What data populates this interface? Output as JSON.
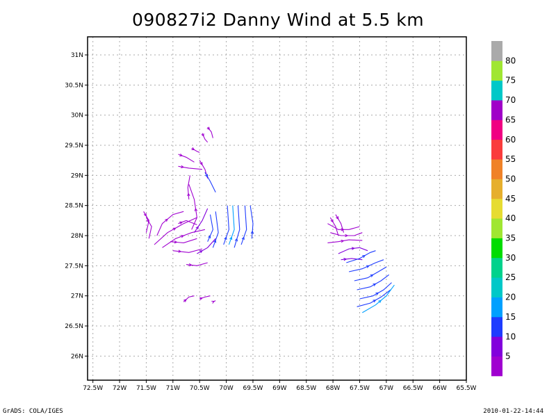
{
  "title": "090827i2 Danny Wind at 5.5 km",
  "footer": {
    "left": "GrADS: COLA/IGES",
    "right": "2010-01-22-14:44"
  },
  "chart_data": {
    "type": "streamline",
    "title": "090827i2 Danny Wind at 5.5 km",
    "xlim": [
      -72.6,
      -65.5
    ],
    "ylim": [
      25.6,
      31.3
    ],
    "grid": true,
    "x_ticks": [
      {
        "value": -72.5,
        "label": "72.5W"
      },
      {
        "value": -72,
        "label": "72W"
      },
      {
        "value": -71.5,
        "label": "71.5W"
      },
      {
        "value": -71,
        "label": "71W"
      },
      {
        "value": -70.5,
        "label": "70.5W"
      },
      {
        "value": -70,
        "label": "70W"
      },
      {
        "value": -69.5,
        "label": "69.5W"
      },
      {
        "value": -69,
        "label": "69W"
      },
      {
        "value": -68.5,
        "label": "68.5W"
      },
      {
        "value": -68,
        "label": "68W"
      },
      {
        "value": -67.5,
        "label": "67.5W"
      },
      {
        "value": -67,
        "label": "67W"
      },
      {
        "value": -66.5,
        "label": "66.5W"
      },
      {
        "value": -66,
        "label": "66W"
      },
      {
        "value": -65.5,
        "label": "65.5W"
      }
    ],
    "y_ticks": [
      {
        "value": 26,
        "label": "26N"
      },
      {
        "value": 26.5,
        "label": "26.5N"
      },
      {
        "value": 27,
        "label": "27N"
      },
      {
        "value": 27.5,
        "label": "27.5N"
      },
      {
        "value": 28,
        "label": "28N"
      },
      {
        "value": 28.5,
        "label": "28.5N"
      },
      {
        "value": 29,
        "label": "29N"
      },
      {
        "value": 29.5,
        "label": "29.5N"
      },
      {
        "value": 30,
        "label": "30N"
      },
      {
        "value": 30.5,
        "label": "30.5N"
      },
      {
        "value": 31,
        "label": "31N"
      }
    ],
    "colorbar": {
      "segments": [
        {
          "color": "#a000d0",
          "label": "5"
        },
        {
          "color": "#8200dc",
          "label": "10"
        },
        {
          "color": "#1e3cff",
          "label": "15"
        },
        {
          "color": "#00a0ff",
          "label": "20"
        },
        {
          "color": "#00c8c8",
          "label": "25"
        },
        {
          "color": "#00d28c",
          "label": "30"
        },
        {
          "color": "#00dc00",
          "label": "35"
        },
        {
          "color": "#a0e632",
          "label": "40"
        },
        {
          "color": "#e6dc32",
          "label": "45"
        },
        {
          "color": "#e6af2d",
          "label": "50"
        },
        {
          "color": "#f08228",
          "label": "55"
        },
        {
          "color": "#fa3c3c",
          "label": "60"
        },
        {
          "color": "#f00082",
          "label": "65"
        },
        {
          "color": "#a000c8",
          "label": "70"
        },
        {
          "color": "#00c8c8",
          "label": "75"
        },
        {
          "color": "#a0e632",
          "label": "80"
        },
        {
          "color": "#aaaaaa",
          "label": ""
        }
      ]
    },
    "streamlines": [
      {
        "color": "#a000d0",
        "points": [
          [
            -70.35,
            29.8
          ],
          [
            -70.28,
            29.72
          ],
          [
            -70.25,
            29.62
          ]
        ]
      },
      {
        "color": "#a000d0",
        "points": [
          [
            -70.45,
            29.7
          ],
          [
            -70.4,
            29.6
          ],
          [
            -70.35,
            29.55
          ]
        ]
      },
      {
        "color": "#a000d0",
        "points": [
          [
            -70.65,
            29.45
          ],
          [
            -70.55,
            29.4
          ],
          [
            -70.5,
            29.38
          ]
        ]
      },
      {
        "color": "#a000d0",
        "points": [
          [
            -70.9,
            29.35
          ],
          [
            -70.75,
            29.3
          ],
          [
            -70.6,
            29.22
          ]
        ]
      },
      {
        "color": "#a000d0",
        "points": [
          [
            -70.9,
            29.15
          ],
          [
            -70.7,
            29.12
          ],
          [
            -70.45,
            29.1
          ]
        ]
      },
      {
        "color": "#a000d0",
        "points": [
          [
            -70.5,
            29.25
          ],
          [
            -70.4,
            29.1
          ],
          [
            -70.35,
            28.95
          ]
        ]
      },
      {
        "color": "#1e3cff",
        "points": [
          [
            -70.4,
            29.05
          ],
          [
            -70.3,
            28.9
          ],
          [
            -70.2,
            28.72
          ]
        ]
      },
      {
        "color": "#a000d0",
        "points": [
          [
            -70.7,
            28.6
          ],
          [
            -70.72,
            28.8
          ],
          [
            -70.68,
            29.0
          ]
        ]
      },
      {
        "color": "#a000d0",
        "points": [
          [
            -70.65,
            28.1
          ],
          [
            -70.55,
            28.3
          ],
          [
            -70.6,
            28.6
          ],
          [
            -70.7,
            28.85
          ]
        ]
      },
      {
        "color": "#a000d0",
        "points": [
          [
            -71.55,
            28.4
          ],
          [
            -71.45,
            28.25
          ],
          [
            -71.5,
            28.05
          ]
        ]
      },
      {
        "color": "#a000d0",
        "points": [
          [
            -71.5,
            28.3
          ],
          [
            -71.4,
            28.15
          ],
          [
            -71.45,
            27.95
          ]
        ]
      },
      {
        "color": "#a000d0",
        "points": [
          [
            -71.3,
            28.0
          ],
          [
            -71.2,
            28.2
          ],
          [
            -71.0,
            28.35
          ],
          [
            -70.8,
            28.4
          ]
        ]
      },
      {
        "color": "#a000d0",
        "points": [
          [
            -71.35,
            27.85
          ],
          [
            -71.1,
            28.05
          ],
          [
            -70.8,
            28.2
          ],
          [
            -70.55,
            28.3
          ]
        ]
      },
      {
        "color": "#a000d0",
        "points": [
          [
            -71.2,
            27.8
          ],
          [
            -70.95,
            27.95
          ],
          [
            -70.65,
            28.05
          ],
          [
            -70.4,
            28.1
          ]
        ]
      },
      {
        "color": "#a000d0",
        "points": [
          [
            -71.05,
            27.9
          ],
          [
            -70.8,
            27.88
          ],
          [
            -70.55,
            27.95
          ]
        ]
      },
      {
        "color": "#a000d0",
        "points": [
          [
            -70.9,
            28.2
          ],
          [
            -70.75,
            28.25
          ],
          [
            -70.55,
            28.18
          ]
        ]
      },
      {
        "color": "#a000d0",
        "points": [
          [
            -71.0,
            27.75
          ],
          [
            -70.7,
            27.72
          ],
          [
            -70.45,
            27.78
          ]
        ]
      },
      {
        "color": "#8200dc",
        "points": [
          [
            -70.55,
            27.7
          ],
          [
            -70.35,
            27.8
          ],
          [
            -70.2,
            27.95
          ]
        ]
      },
      {
        "color": "#8200dc",
        "points": [
          [
            -70.6,
            28.05
          ],
          [
            -70.45,
            28.25
          ],
          [
            -70.35,
            28.45
          ]
        ]
      },
      {
        "color": "#1e3cff",
        "points": [
          [
            -70.35,
            27.9
          ],
          [
            -70.25,
            28.1
          ],
          [
            -70.3,
            28.35
          ]
        ]
      },
      {
        "color": "#1e3cff",
        "points": [
          [
            -70.25,
            27.8
          ],
          [
            -70.15,
            28.05
          ],
          [
            -70.2,
            28.4
          ]
        ]
      },
      {
        "color": "#1e3cff",
        "points": [
          [
            -70.05,
            27.85
          ],
          [
            -69.95,
            28.1
          ],
          [
            -69.98,
            28.5
          ]
        ]
      },
      {
        "color": "#00a0ff",
        "points": [
          [
            -69.95,
            27.85
          ],
          [
            -69.85,
            28.1
          ],
          [
            -69.88,
            28.5
          ]
        ]
      },
      {
        "color": "#1e3cff",
        "points": [
          [
            -69.85,
            27.8
          ],
          [
            -69.75,
            28.1
          ],
          [
            -69.78,
            28.5
          ]
        ]
      },
      {
        "color": "#1e3cff",
        "points": [
          [
            -69.72,
            27.85
          ],
          [
            -69.62,
            28.1
          ],
          [
            -69.65,
            28.5
          ]
        ]
      },
      {
        "color": "#1e3cff",
        "points": [
          [
            -69.52,
            27.95
          ],
          [
            -69.5,
            28.2
          ],
          [
            -69.55,
            28.5
          ]
        ]
      },
      {
        "color": "#a000d0",
        "points": [
          [
            -70.75,
            27.52
          ],
          [
            -70.55,
            27.5
          ],
          [
            -70.35,
            27.55
          ]
        ]
      },
      {
        "color": "#a000d0",
        "points": [
          [
            -70.8,
            26.9
          ],
          [
            -70.7,
            26.98
          ],
          [
            -70.6,
            27.0
          ]
        ]
      },
      {
        "color": "#a000d0",
        "points": [
          [
            -70.5,
            26.95
          ],
          [
            -70.4,
            26.98
          ],
          [
            -70.3,
            27.0
          ]
        ]
      },
      {
        "color": "#a000d0",
        "points": [
          [
            -70.25,
            26.9
          ],
          [
            -70.2,
            26.92
          ]
        ]
      },
      {
        "color": "#a000d0",
        "points": [
          [
            -68.05,
            28.3
          ],
          [
            -67.95,
            28.15
          ],
          [
            -67.9,
            28.0
          ]
        ]
      },
      {
        "color": "#a000d0",
        "points": [
          [
            -67.95,
            28.35
          ],
          [
            -67.85,
            28.2
          ],
          [
            -67.8,
            28.05
          ]
        ]
      },
      {
        "color": "#a000d0",
        "points": [
          [
            -68.1,
            28.2
          ],
          [
            -67.9,
            28.1
          ],
          [
            -67.7,
            28.1
          ],
          [
            -67.5,
            28.15
          ]
        ]
      },
      {
        "color": "#a000d0",
        "points": [
          [
            -68.05,
            28.05
          ],
          [
            -67.85,
            28.0
          ],
          [
            -67.6,
            28.0
          ],
          [
            -67.45,
            28.05
          ]
        ]
      },
      {
        "color": "#a000d0",
        "points": [
          [
            -68.1,
            27.88
          ],
          [
            -67.9,
            27.9
          ],
          [
            -67.7,
            27.93
          ],
          [
            -67.45,
            27.92
          ]
        ]
      },
      {
        "color": "#8200dc",
        "points": [
          [
            -67.9,
            27.7
          ],
          [
            -67.7,
            27.78
          ],
          [
            -67.5,
            27.8
          ],
          [
            -67.35,
            27.75
          ]
        ]
      },
      {
        "color": "#8200dc",
        "points": [
          [
            -67.85,
            27.6
          ],
          [
            -67.65,
            27.62
          ],
          [
            -67.45,
            27.6
          ]
        ]
      },
      {
        "color": "#1e3cff",
        "points": [
          [
            -67.75,
            27.55
          ],
          [
            -67.5,
            27.62
          ],
          [
            -67.3,
            27.72
          ],
          [
            -67.2,
            27.75
          ]
        ]
      },
      {
        "color": "#1e3cff",
        "points": [
          [
            -67.7,
            27.4
          ],
          [
            -67.45,
            27.45
          ],
          [
            -67.2,
            27.55
          ],
          [
            -67.05,
            27.6
          ]
        ]
      },
      {
        "color": "#1e3cff",
        "points": [
          [
            -67.6,
            27.25
          ],
          [
            -67.35,
            27.3
          ],
          [
            -67.15,
            27.4
          ],
          [
            -67.0,
            27.48
          ]
        ]
      },
      {
        "color": "#1e3cff",
        "points": [
          [
            -67.55,
            27.1
          ],
          [
            -67.3,
            27.15
          ],
          [
            -67.1,
            27.25
          ],
          [
            -66.95,
            27.35
          ]
        ]
      },
      {
        "color": "#1e3cff",
        "points": [
          [
            -67.5,
            26.95
          ],
          [
            -67.25,
            27.0
          ],
          [
            -67.05,
            27.1
          ],
          [
            -66.9,
            27.22
          ]
        ]
      },
      {
        "color": "#1e3cff",
        "points": [
          [
            -67.55,
            26.82
          ],
          [
            -67.3,
            26.88
          ],
          [
            -67.1,
            26.98
          ],
          [
            -66.92,
            27.1
          ]
        ]
      },
      {
        "color": "#00a0ff",
        "points": [
          [
            -67.45,
            26.72
          ],
          [
            -67.2,
            26.85
          ],
          [
            -67.0,
            27.0
          ],
          [
            -66.85,
            27.18
          ]
        ]
      }
    ]
  }
}
